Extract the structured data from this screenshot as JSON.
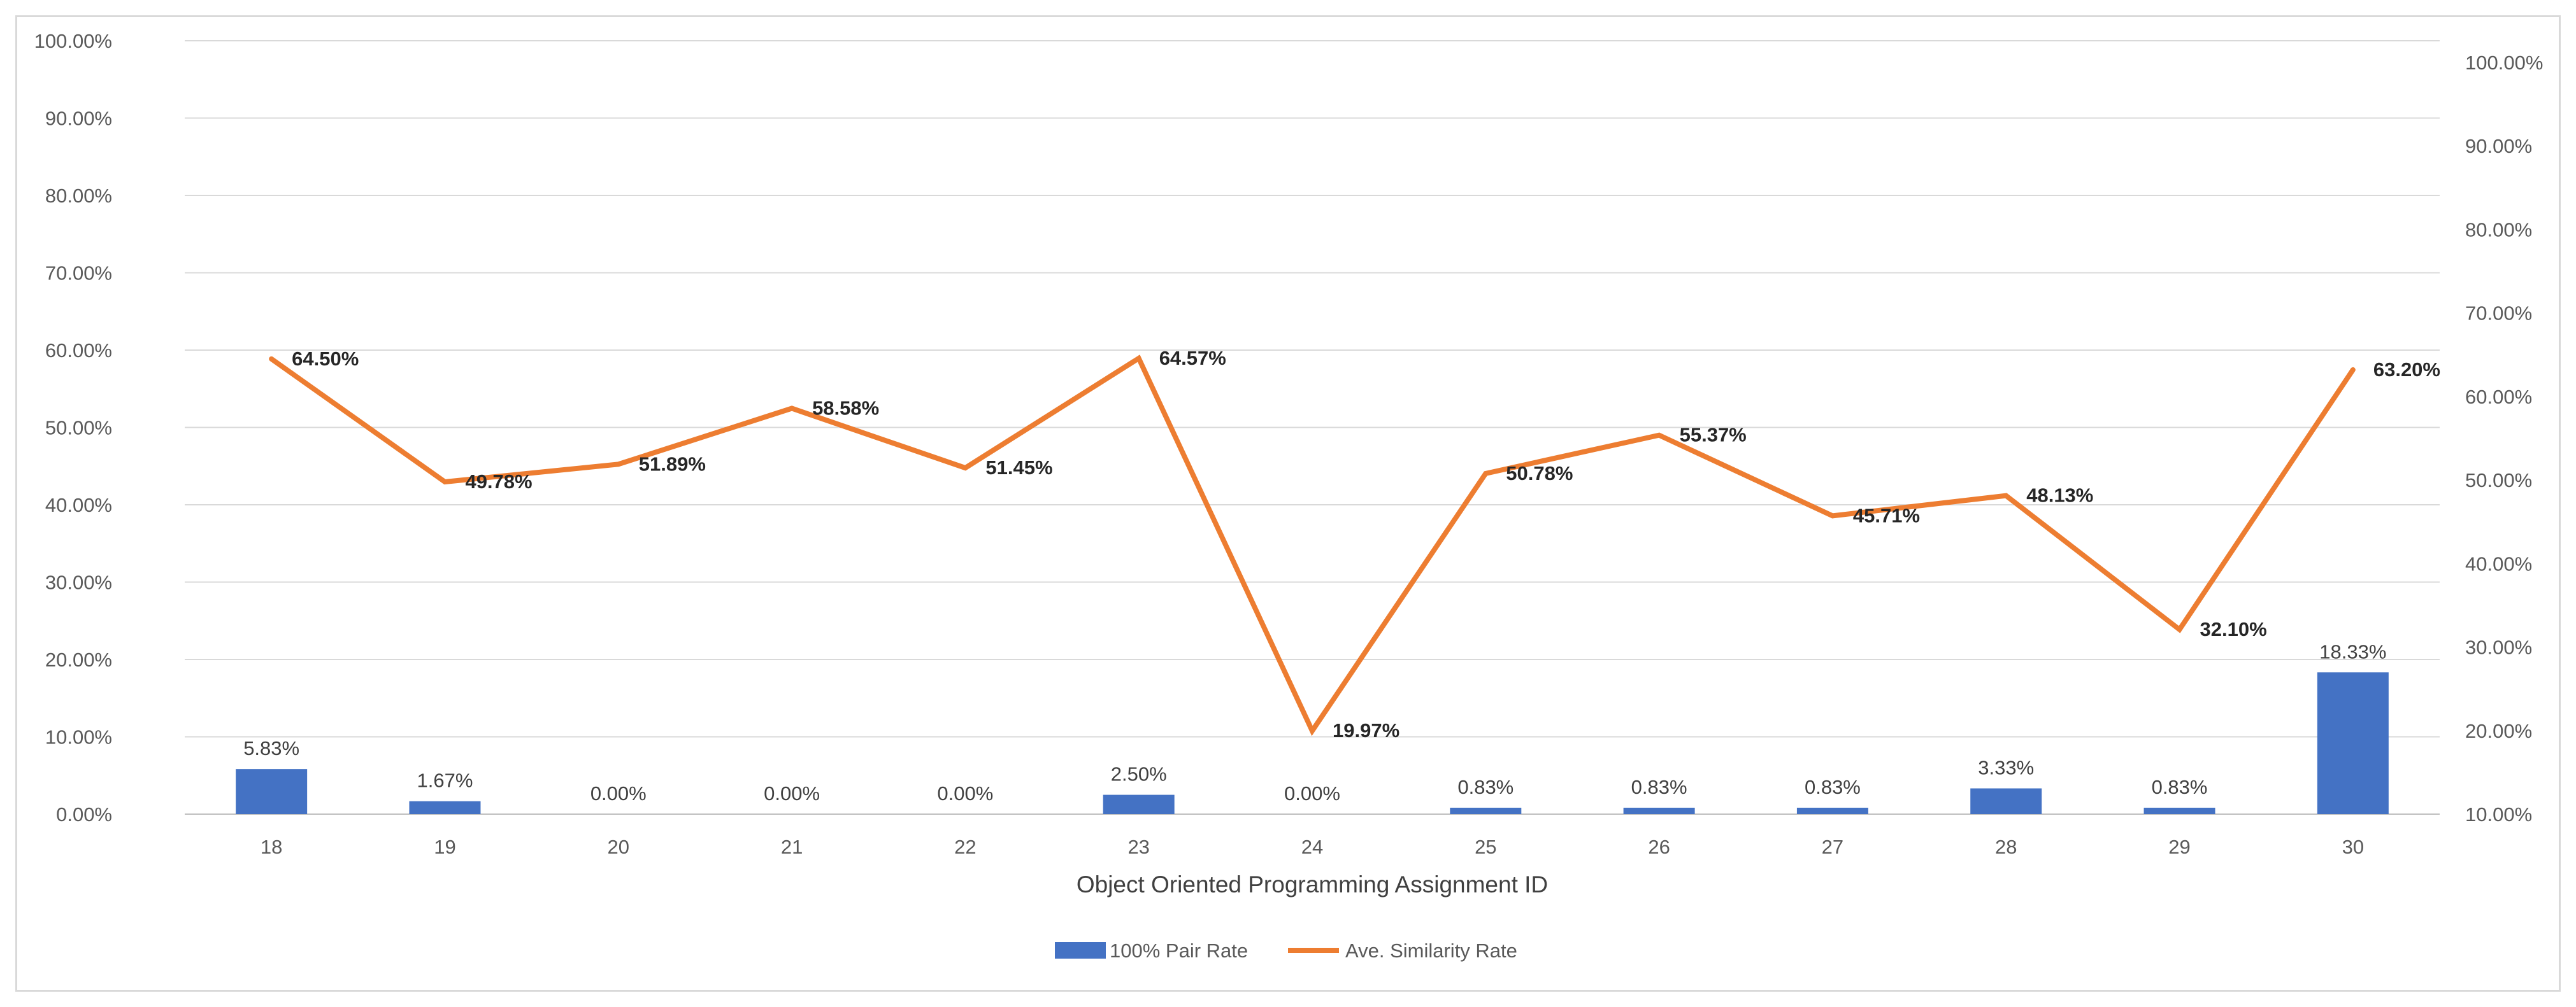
{
  "chart_data": {
    "type": "bar+line",
    "title": "",
    "xlabel": "Object Oriented Programming Assignment ID",
    "categories": [
      "18",
      "19",
      "20",
      "21",
      "22",
      "23",
      "24",
      "25",
      "26",
      "27",
      "28",
      "29",
      "30"
    ],
    "left_axis": {
      "range": [
        0,
        100
      ],
      "ticks": [
        "0.00%",
        "10.00%",
        "20.00%",
        "30.00%",
        "40.00%",
        "50.00%",
        "60.00%",
        "70.00%",
        "80.00%",
        "90.00%",
        "100.00%"
      ]
    },
    "right_axis": {
      "range": [
        10,
        100
      ],
      "ticks": [
        "10.00%",
        "20.00%",
        "30.00%",
        "40.00%",
        "50.00%",
        "60.00%",
        "70.00%",
        "80.00%",
        "90.00%",
        "100.00%"
      ]
    },
    "grid": true,
    "legend_position": "bottom",
    "series": [
      {
        "name": "100% Pair Rate",
        "type": "bar",
        "axis": "left",
        "color": "#4472C4",
        "values": [
          5.83,
          1.67,
          0.0,
          0.0,
          0.0,
          2.5,
          0.0,
          0.83,
          0.83,
          0.83,
          3.33,
          0.83,
          18.33
        ],
        "labels": [
          "5.83%",
          "1.67%",
          "0.00%",
          "0.00%",
          "0.00%",
          "2.50%",
          "0.00%",
          "0.83%",
          "0.83%",
          "0.83%",
          "3.33%",
          "0.83%",
          "18.33%"
        ]
      },
      {
        "name": "Ave. Similarity Rate",
        "type": "line",
        "axis": "right",
        "color": "#ED7D31",
        "values": [
          64.5,
          49.78,
          51.89,
          58.58,
          51.45,
          64.57,
          19.97,
          50.78,
          55.37,
          45.71,
          48.13,
          32.1,
          63.2
        ],
        "labels": [
          "64.50%",
          "49.78%",
          "51.89%",
          "58.58%",
          "51.45%",
          "64.57%",
          "19.97%",
          "50.78%",
          "55.37%",
          "45.71%",
          "48.13%",
          "32.10%",
          "63.20%"
        ]
      }
    ]
  }
}
